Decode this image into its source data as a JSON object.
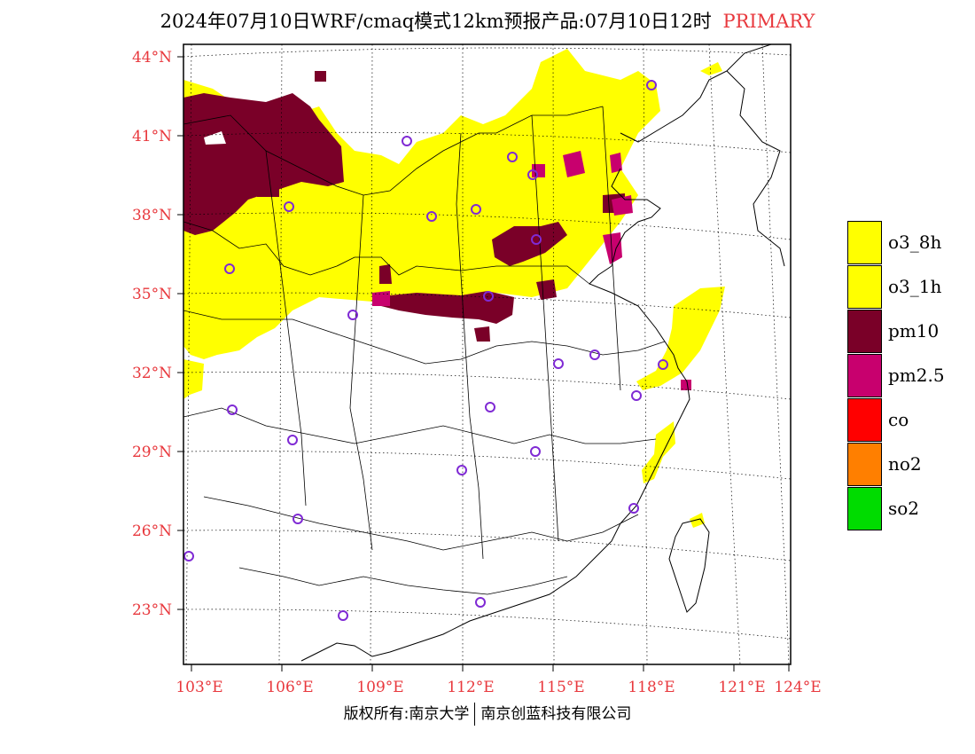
{
  "title": {
    "main": "2024年07月10日WRF/cmaq模式12km预报产品:07月10日12时",
    "tag": "PRIMARY"
  },
  "axes": {
    "lat_labels": [
      "44°N",
      "41°N",
      "38°N",
      "35°N",
      "32°N",
      "29°N",
      "26°N",
      "23°N"
    ],
    "lon_labels": [
      "103°E",
      "106°E",
      "109°E",
      "112°E",
      "115°E",
      "118°E",
      "121°E",
      "124°E"
    ]
  },
  "legend": {
    "items": [
      {
        "label": "o3_8h",
        "color": "#ffff00"
      },
      {
        "label": "o3_1h",
        "color": "#ffff00"
      },
      {
        "label": "pm10",
        "color": "#7a0028"
      },
      {
        "label": "pm2.5",
        "color": "#c8006e"
      },
      {
        "label": "co",
        "color": "#ff0000"
      },
      {
        "label": "no2",
        "color": "#ff7f00"
      },
      {
        "label": "so2",
        "color": "#00dc00"
      }
    ]
  },
  "footer": {
    "left": "版权所有:南京大学",
    "right": "南京创蓝科技有限公司"
  },
  "colors": {
    "accent_red": "#e8383d",
    "yellow": "#ffff00",
    "maroon": "#7a0028",
    "magenta": "#c8006e",
    "station_circle": "#7f2ad4"
  }
}
